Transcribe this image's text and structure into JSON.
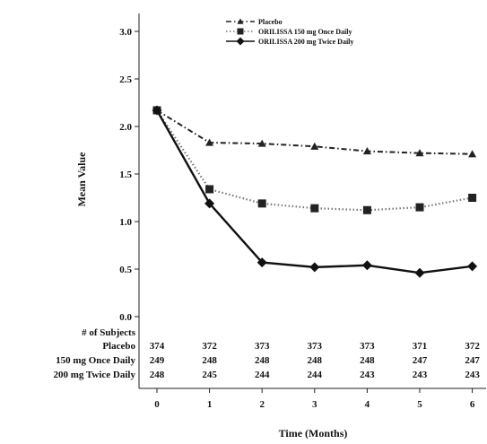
{
  "chart_data": {
    "type": "line",
    "xlabel": "Time (Months)",
    "ylabel": "Mean Value",
    "x": [
      0,
      1,
      2,
      3,
      4,
      5,
      6
    ],
    "xlim": [
      -0.3,
      6.5
    ],
    "ylim": [
      0.0,
      3.0
    ],
    "yticks": [
      "0.0",
      "0.5",
      "1.0",
      "1.5",
      "2.0",
      "2.5",
      "3.0"
    ],
    "grid": false,
    "legend_position": "top-right",
    "series": [
      {
        "name": "Placebo",
        "marker": "triangle",
        "line": "dash-dot",
        "color": "#222222",
        "values": [
          2.17,
          1.83,
          1.82,
          1.79,
          1.74,
          1.72,
          1.71
        ]
      },
      {
        "name": "ORILISSA 150 mg Once Daily",
        "marker": "square",
        "line": "dotted",
        "color": "#222222",
        "values": [
          2.17,
          1.34,
          1.19,
          1.14,
          1.12,
          1.15,
          1.25
        ]
      },
      {
        "name": "ORILISSA 200 mg Twice Daily",
        "marker": "diamond",
        "line": "solid",
        "color": "#111111",
        "values": [
          2.17,
          1.19,
          0.57,
          0.52,
          0.54,
          0.46,
          0.53
        ]
      }
    ],
    "subjects_table": {
      "header": "# of Subjects",
      "rows": [
        {
          "label": "Placebo",
          "values": [
            "374",
            "372",
            "373",
            "373",
            "373",
            "371",
            "372"
          ]
        },
        {
          "label": "150 mg Once Daily",
          "values": [
            "249",
            "248",
            "248",
            "248",
            "248",
            "247",
            "247"
          ]
        },
        {
          "label": "200 mg Twice Daily",
          "values": [
            "248",
            "245",
            "244",
            "244",
            "243",
            "243",
            "243"
          ]
        }
      ]
    }
  }
}
